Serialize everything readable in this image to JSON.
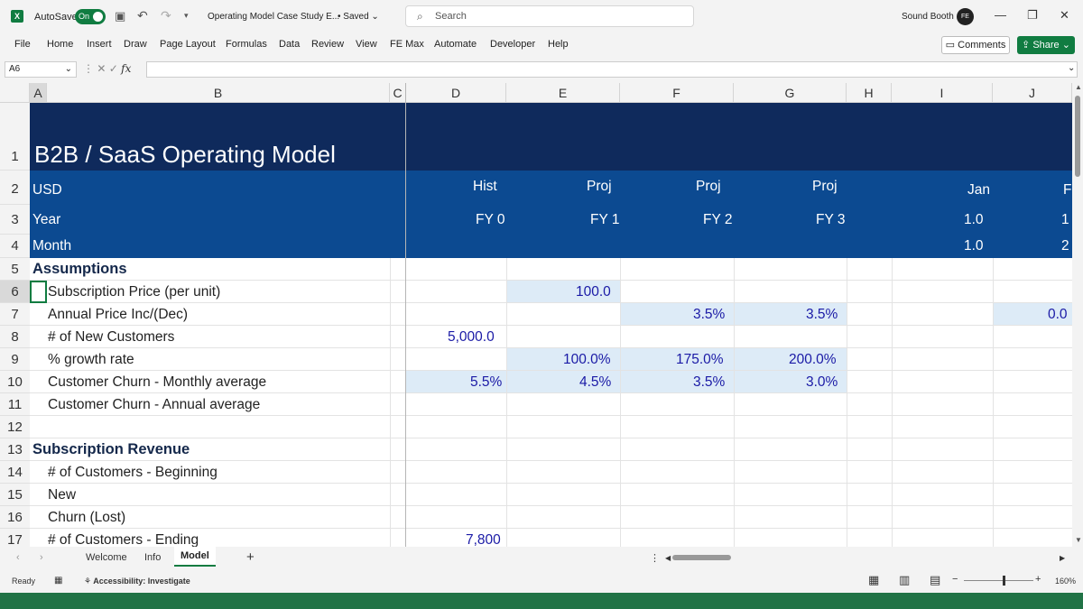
{
  "titlebar": {
    "autosave_label": "AutoSave",
    "autosave_state": "On",
    "document_title": "Operating Model Case Study E...",
    "saved_status": "• Saved",
    "search_placeholder": "Search",
    "user_name": "Sound Booth",
    "avatar_initials": "FE"
  },
  "menu": {
    "items": [
      "File",
      "Home",
      "Insert",
      "Draw",
      "Page Layout",
      "Formulas",
      "Data",
      "Review",
      "View",
      "FE Max",
      "Automate",
      "Developer",
      "Help"
    ],
    "comments_label": "Comments",
    "share_label": "Share"
  },
  "formula_bar": {
    "name_box": "A6",
    "fx_label": "fx",
    "formula": ""
  },
  "columns": [
    "A",
    "B",
    "C",
    "D",
    "E",
    "F",
    "G",
    "H",
    "I",
    "J"
  ],
  "rows": [
    "1",
    "2",
    "3",
    "4",
    "5",
    "6",
    "7",
    "8",
    "9",
    "10",
    "11",
    "12",
    "13",
    "14",
    "15",
    "16",
    "17"
  ],
  "sheet": {
    "title": "B2B / SaaS Operating Model",
    "row2": {
      "label": "USD",
      "d": "Hist",
      "e": "Proj",
      "f": "Proj",
      "g": "Proj",
      "i": "Jan",
      "j": "F"
    },
    "row3": {
      "label": "Year",
      "d": "FY 0",
      "e": "FY 1",
      "f": "FY 2",
      "g": "FY 3",
      "i": "1.0",
      "j": "1"
    },
    "row4": {
      "label": "Month",
      "i": "1.0",
      "j": "2"
    },
    "row5": {
      "label": "Assumptions"
    },
    "row6": {
      "label": "Subscription Price (per unit)",
      "e": "100.0"
    },
    "row7": {
      "label": "Annual Price Inc/(Dec)",
      "f": "3.5%",
      "g": "3.5%",
      "j": "0.0"
    },
    "row8": {
      "label": "# of New Customers",
      "d": "5,000.0"
    },
    "row9": {
      "label": "% growth rate",
      "e": "100.0%",
      "f": "175.0%",
      "g": "200.0%"
    },
    "row10": {
      "label": "Customer Churn - Monthly average",
      "d": "5.5%",
      "e": "4.5%",
      "f": "3.5%",
      "g": "3.0%"
    },
    "row11": {
      "label": "Customer Churn - Annual average"
    },
    "row13": {
      "label": "Subscription Revenue"
    },
    "row14": {
      "label": "# of Customers - Beginning"
    },
    "row15": {
      "label": "New"
    },
    "row16": {
      "label": "Churn (Lost)"
    },
    "row17": {
      "label": "# of Customers - Ending",
      "d": "7,800"
    }
  },
  "tabs": {
    "items": [
      "Welcome",
      "Info"
    ],
    "active": "Model",
    "add": "+"
  },
  "status": {
    "ready": "Ready",
    "accessibility": "Accessibility: Investigate",
    "zoom": "160%"
  }
}
